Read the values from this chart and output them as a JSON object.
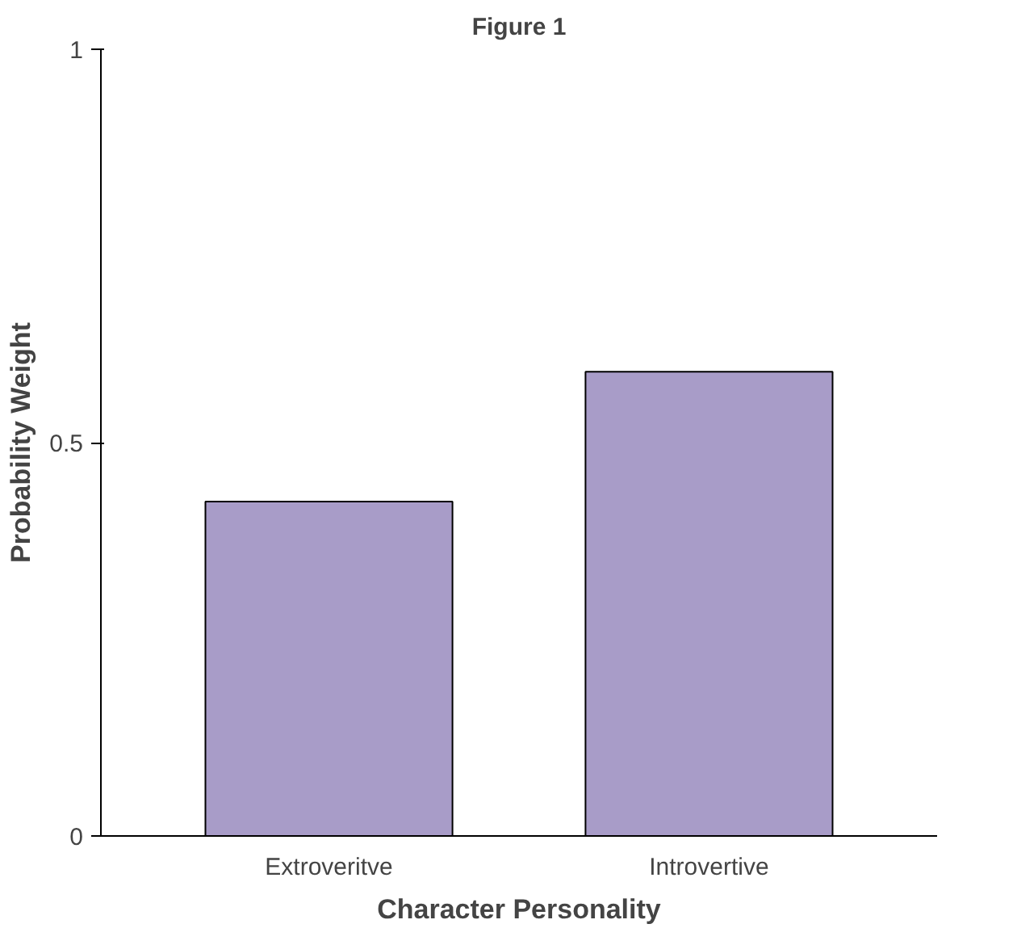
{
  "chart_data": {
    "type": "bar",
    "title": "Figure 1",
    "xlabel": "Character Personality",
    "ylabel": "Probability Weight",
    "categories": [
      "Extroveritve",
      "Introvertive"
    ],
    "values": [
      0.425,
      0.59
    ],
    "color": "#a89cc8",
    "ylim": [
      0,
      1
    ],
    "yticks": [
      0,
      0.5,
      1
    ],
    "grid": false
  }
}
